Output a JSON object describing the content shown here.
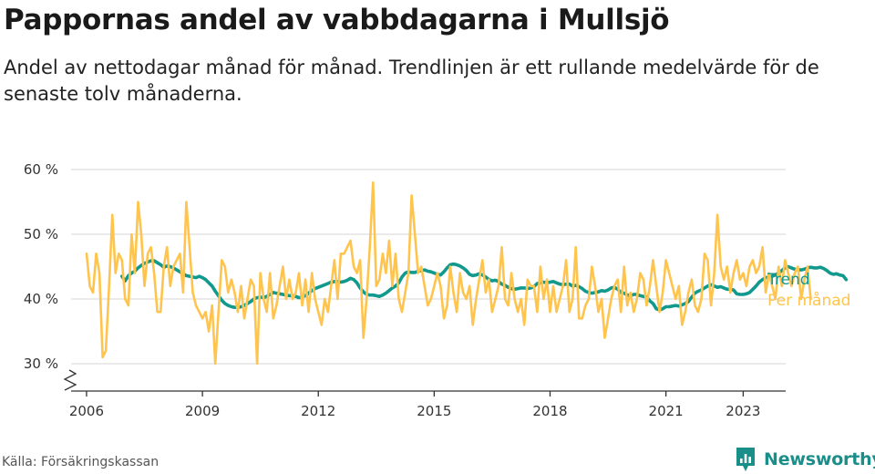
{
  "header": {
    "title": "Pappornas andel av vabbdagarna i Mullsjö",
    "subtitle": "Andel av nettodagar månad för månad. Trendlinjen är ett rullande medelvärde för de senaste tolv månaderna."
  },
  "footer": {
    "source": "Källa: Försäkringskassan",
    "brand": "Newsworthy"
  },
  "colors": {
    "trend": "#12998d",
    "monthly": "#ffc44d",
    "grid": "#dddddd",
    "brand": "#1a8f8a"
  },
  "chart_data": {
    "type": "line",
    "title": "Pappornas andel av vabbdagarna i Mullsjö",
    "ylim": [
      30,
      60
    ],
    "yticks": [
      30,
      40,
      50,
      60
    ],
    "ytick_labels": [
      "30 %",
      "40 %",
      "50 %",
      "60 %"
    ],
    "y_axis_break": true,
    "xlim": [
      2005.6,
      2024.1
    ],
    "xticks": [
      2006,
      2009,
      2012,
      2015,
      2018,
      2021,
      2023
    ],
    "xtick_labels": [
      "2006",
      "2009",
      "2012",
      "2015",
      "2018",
      "2021",
      "2023"
    ],
    "grid": true,
    "legend_position": "right, at line ends",
    "series": [
      {
        "name": "Per månad",
        "color": "#ffc44d",
        "x_start": "2006-01",
        "step": "month",
        "values": [
          47,
          42,
          41,
          47,
          44,
          31,
          32,
          42,
          53,
          44,
          47,
          46,
          40,
          39,
          50,
          44,
          55,
          50,
          42,
          47,
          48,
          44,
          38,
          38,
          45,
          48,
          42,
          45,
          46,
          47,
          41,
          55,
          48,
          41,
          39,
          38,
          37,
          38,
          35,
          39,
          30,
          38,
          46,
          45,
          41,
          43,
          41,
          38,
          42,
          37,
          40,
          43,
          42,
          30,
          44,
          40,
          38,
          44,
          37,
          39,
          42,
          45,
          40,
          43,
          40,
          41,
          44,
          39,
          43,
          38,
          44,
          40,
          38,
          36,
          40,
          38,
          42,
          46,
          40,
          47,
          47,
          48,
          49,
          45,
          44,
          46,
          34,
          40,
          48,
          58,
          42,
          43,
          47,
          44,
          49,
          42,
          47,
          40,
          38,
          41,
          44,
          56,
          50,
          44,
          45,
          42,
          39,
          40,
          42,
          44,
          42,
          37,
          39,
          45,
          41,
          38,
          44,
          41,
          40,
          42,
          36,
          40,
          43,
          46,
          41,
          43,
          38,
          40,
          42,
          48,
          40,
          39,
          44,
          40,
          38,
          40,
          36,
          43,
          42,
          42,
          38,
          45,
          40,
          43,
          38,
          42,
          38,
          40,
          42,
          46,
          38,
          40,
          48,
          37,
          37,
          39,
          40,
          45,
          42,
          38,
          40,
          34,
          37,
          40,
          42,
          43,
          38,
          45,
          39,
          41,
          38,
          40,
          44,
          43,
          39,
          42,
          46,
          42,
          38,
          41,
          46,
          44,
          42,
          40,
          42,
          36,
          38,
          41,
          43,
          39,
          38,
          40,
          47,
          46,
          39,
          44,
          53,
          45,
          43,
          45,
          41,
          44,
          46,
          43,
          44,
          42,
          45,
          46,
          44,
          45,
          48,
          41,
          44,
          42,
          40,
          45,
          42,
          46,
          44,
          42,
          44,
          45,
          40,
          43,
          45,
          40
        ]
      },
      {
        "name": "Trend",
        "color": "#12998d",
        "x_start": "2006-12",
        "step": "month",
        "values": [
          43.5,
          42.8,
          43.6,
          44.0,
          44.3,
          44.8,
          45.2,
          45.5,
          45.7,
          45.9,
          45.9,
          45.6,
          45.3,
          44.9,
          45.1,
          45.0,
          44.8,
          44.5,
          44.2,
          43.9,
          43.6,
          43.5,
          43.4,
          43.3,
          43.5,
          43.3,
          43.0,
          42.5,
          42.0,
          41.2,
          40.5,
          39.8,
          39.3,
          39.0,
          38.8,
          38.7,
          38.7,
          38.8,
          39.0,
          39.3,
          39.6,
          40.0,
          40.2,
          40.3,
          40.2,
          40.4,
          40.7,
          41.0,
          40.9,
          40.8,
          40.7,
          40.6,
          40.5,
          40.5,
          40.4,
          40.2,
          40.3,
          40.5,
          40.9,
          41.3,
          41.6,
          41.8,
          42.0,
          42.2,
          42.4,
          42.6,
          42.7,
          42.7,
          42.6,
          42.7,
          42.9,
          43.2,
          43.0,
          42.5,
          41.7,
          41.1,
          40.7,
          40.6,
          40.6,
          40.5,
          40.4,
          40.6,
          40.9,
          41.3,
          41.7,
          42.0,
          42.5,
          43.4,
          44.0,
          44.2,
          44.1,
          44.1,
          44.3,
          44.4,
          44.5,
          44.3,
          44.2,
          44.0,
          43.8,
          43.7,
          44.2,
          44.8,
          45.3,
          45.4,
          45.3,
          45.1,
          44.8,
          44.4,
          43.8,
          43.6,
          43.7,
          43.9,
          43.7,
          43.4,
          43.0,
          42.8,
          42.9,
          42.7,
          42.3,
          42.1,
          41.8,
          41.6,
          41.5,
          41.6,
          41.7,
          41.7,
          41.6,
          41.7,
          41.9,
          42.4,
          42.5,
          42.6,
          42.5,
          42.6,
          42.7,
          42.5,
          42.3,
          42.2,
          42.3,
          42.3,
          42.0,
          42.1,
          41.9,
          41.6,
          41.2,
          41.0,
          40.9,
          41.0,
          41.1,
          41.3,
          41.2,
          41.4,
          41.7,
          41.8,
          41.5,
          41.0,
          40.9,
          40.6,
          40.5,
          40.7,
          40.7,
          40.5,
          40.4,
          40.3,
          39.7,
          39.3,
          38.5,
          38.3,
          38.5,
          38.8,
          38.8,
          38.9,
          39.0,
          38.9,
          39.1,
          39.3,
          39.6,
          40.3,
          40.9,
          41.2,
          41.4,
          41.7,
          42.0,
          42.2,
          42.0,
          41.8,
          41.9,
          41.7,
          41.5,
          41.5,
          41.4,
          40.8,
          40.7,
          40.7,
          40.8,
          41.0,
          41.5,
          42.0,
          42.6,
          43.0,
          43.3,
          43.4,
          43.5,
          43.7,
          44.0,
          44.4,
          44.8,
          45.0,
          44.8,
          44.6,
          44.5,
          44.5,
          44.6,
          44.8,
          44.9,
          44.8,
          44.8,
          44.9,
          44.7,
          44.4,
          44.0,
          43.8,
          43.9,
          43.7,
          43.6,
          43.0
        ]
      }
    ]
  }
}
